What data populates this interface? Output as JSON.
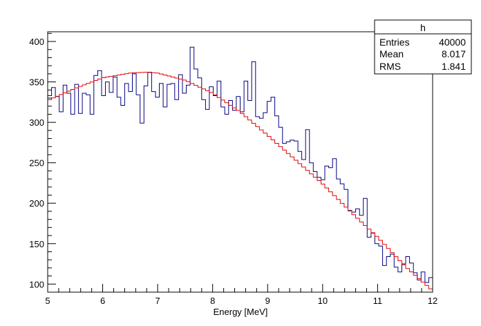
{
  "chart_data": {
    "type": "line",
    "title": "",
    "xlabel": "Energy [MeV]",
    "ylabel": "",
    "xlim": [
      5,
      12
    ],
    "ylim": [
      90,
      412
    ],
    "grid": false,
    "xticks": [
      "5",
      "6",
      "7",
      "8",
      "9",
      "10",
      "11",
      "12"
    ],
    "yticks": [
      "100",
      "150",
      "200",
      "250",
      "300",
      "350",
      "400"
    ],
    "colors": {
      "histogram": "#000080",
      "fit": "#e00000"
    },
    "series": [
      {
        "style": "step",
        "bin_edges_from": 5.0,
        "bin_width": 0.07,
        "values": [
          333,
          343,
          332,
          313,
          346,
          336,
          310,
          347,
          311,
          336,
          334,
          310,
          358,
          364,
          333,
          350,
          337,
          356,
          331,
          321,
          348,
          338,
          360,
          334,
          299,
          345,
          362,
          338,
          331,
          348,
          319,
          347,
          348,
          328,
          359,
          336,
          346,
          393,
          366,
          355,
          328,
          316,
          344,
          333,
          351,
          319,
          310,
          327,
          315,
          332,
          313,
          351,
          327,
          375,
          307,
          305,
          312,
          326,
          331,
          308,
          294,
          274,
          276,
          278,
          277,
          264,
          254,
          291,
          250,
          239,
          232,
          229,
          246,
          244,
          255,
          230,
          224,
          217,
          191,
          189,
          193,
          185,
          206,
          158,
          163,
          150,
          147,
          123,
          134,
          137,
          121,
          115,
          125,
          134,
          126,
          114,
          105,
          115,
          102,
          108
        ]
      },
      {
        "style": "fit",
        "x": [
          5.0,
          5.5,
          6.0,
          6.5,
          6.8,
          7.0,
          7.5,
          8.0,
          8.5,
          9.0,
          9.5,
          10.0,
          10.5,
          11.0,
          11.5,
          12.0
        ],
        "values": [
          327,
          342,
          355,
          361,
          362,
          361,
          352,
          336,
          313,
          284,
          254,
          224,
          190,
          158,
          122,
          92
        ]
      }
    ]
  },
  "stats_box": {
    "title": "h",
    "rows": [
      {
        "label": "Entries",
        "value": "40000"
      },
      {
        "label": "Mean",
        "value": "8.017"
      },
      {
        "label": "RMS",
        "value": "1.841"
      }
    ]
  }
}
